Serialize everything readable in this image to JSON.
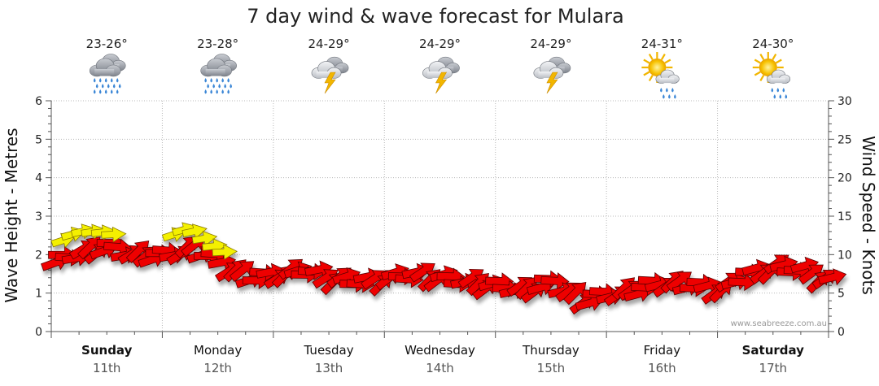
{
  "chart_data": {
    "type": "line",
    "title": "7 day wind & wave forecast for Mulara",
    "ylabel_left": "Wave Height - Metres",
    "ylabel_right": "Wind Speed - Knots",
    "ylim_left": [
      0,
      6
    ],
    "ylim_right": [
      0,
      30
    ],
    "left_ticks": [
      "0",
      "1",
      "2",
      "3",
      "4",
      "5",
      "6"
    ],
    "right_ticks": [
      "0",
      "5",
      "10",
      "15",
      "20",
      "25",
      "30"
    ],
    "credit": "www.seabreeze.com.au",
    "days": [
      {
        "name": "Sunday",
        "date": "11th",
        "temp": "23-26°",
        "icon": "heavy-rain-icon",
        "bold": true
      },
      {
        "name": "Monday",
        "date": "12th",
        "temp": "23-28°",
        "icon": "heavy-rain-icon",
        "bold": false
      },
      {
        "name": "Tuesday",
        "date": "13th",
        "temp": "24-29°",
        "icon": "thunderstorm-icon",
        "bold": false
      },
      {
        "name": "Wednesday",
        "date": "14th",
        "temp": "24-29°",
        "icon": "thunderstorm-icon",
        "bold": false
      },
      {
        "name": "Thursday",
        "date": "15th",
        "temp": "24-29°",
        "icon": "thunderstorm-icon",
        "bold": false
      },
      {
        "name": "Friday",
        "date": "16th",
        "temp": "24-31°",
        "icon": "sun-shower-icon",
        "bold": false
      },
      {
        "name": "Saturday",
        "date": "17th",
        "temp": "24-30°",
        "icon": "sun-shower-icon",
        "bold": true
      }
    ],
    "wind_series": {
      "name": "Wind",
      "unit": "knots",
      "x_day": [
        0.0,
        0.25,
        0.5,
        0.75,
        1.0,
        1.25,
        1.5,
        1.75,
        2.0,
        2.25,
        2.5,
        2.75,
        3.0,
        3.25,
        3.5,
        3.75,
        4.0,
        4.25,
        4.5,
        4.75,
        5.0,
        5.25,
        5.5,
        5.75,
        6.0,
        6.25,
        6.5,
        6.75,
        7.0
      ],
      "speed_knots": [
        9.0,
        10.5,
        11.0,
        10.0,
        10.0,
        11.0,
        9.0,
        7.0,
        7.5,
        8.0,
        7.0,
        6.5,
        7.0,
        7.5,
        7.0,
        6.5,
        6.0,
        5.5,
        6.5,
        4.0,
        5.0,
        5.5,
        6.5,
        6.0,
        5.5,
        7.5,
        8.5,
        8.0,
        6.5
      ],
      "direction": "from east",
      "strong_highlight_days": [
        "Sunday",
        "Monday"
      ]
    }
  }
}
